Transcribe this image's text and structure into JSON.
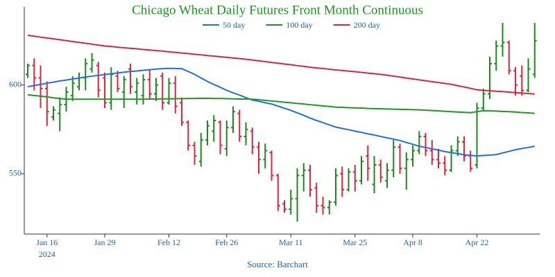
{
  "chart_data": {
    "type": "ohlc",
    "title": "Chicago Wheat Daily Futures Front Month Continuous",
    "source": "Source: Barchart",
    "year": "2024",
    "categories": [
      null,
      null,
      null,
      "Jan 16",
      null,
      null,
      null,
      null,
      null,
      null,
      null,
      null,
      "Jan 29",
      null,
      null,
      null,
      null,
      null,
      null,
      null,
      null,
      null,
      "Feb 12",
      null,
      null,
      null,
      null,
      null,
      null,
      null,
      null,
      "Feb 26",
      null,
      null,
      null,
      null,
      null,
      null,
      null,
      null,
      null,
      "Mar 11",
      null,
      null,
      null,
      null,
      null,
      null,
      null,
      null,
      null,
      "Mar 25",
      null,
      null,
      null,
      null,
      null,
      null,
      null,
      null,
      "Apr 8",
      null,
      null,
      null,
      null,
      null,
      null,
      null,
      null,
      null,
      "Apr 22",
      null,
      null,
      null,
      null,
      null,
      null,
      null,
      null,
      null
    ],
    "open": [
      606,
      611,
      604,
      598,
      582,
      584,
      589,
      594,
      599,
      604,
      609,
      611,
      604,
      590,
      605,
      596,
      609,
      596,
      594,
      603,
      595,
      605,
      590,
      601,
      590,
      579,
      566,
      557,
      569,
      574,
      579,
      564,
      576,
      584,
      571,
      574,
      565,
      558,
      562,
      549,
      533,
      530,
      536,
      549,
      552,
      542,
      532,
      531,
      534,
      550,
      541,
      551,
      546,
      560,
      544,
      555,
      546,
      552,
      565,
      553,
      558,
      563,
      571,
      563,
      558,
      556,
      552,
      563,
      568,
      560,
      555,
      587,
      595,
      612,
      622,
      624,
      608,
      605,
      597,
      606
    ],
    "high": [
      612,
      615,
      611,
      602,
      588,
      593,
      599,
      605,
      607,
      615,
      618,
      613,
      607,
      610,
      608,
      605,
      612,
      604,
      606,
      609,
      604,
      607,
      604,
      605,
      593,
      580,
      568,
      573,
      580,
      583,
      580,
      580,
      588,
      586,
      579,
      576,
      568,
      567,
      563,
      550,
      535,
      541,
      553,
      556,
      555,
      545,
      537,
      535,
      553,
      554,
      553,
      555,
      560,
      566,
      560,
      558,
      556,
      569,
      567,
      562,
      566,
      574,
      573,
      569,
      564,
      560,
      566,
      571,
      571,
      563,
      590,
      598,
      616,
      625,
      635,
      625,
      610,
      611,
      615,
      635
    ],
    "low": [
      604,
      597,
      587,
      577,
      580,
      574,
      585,
      591,
      597,
      597,
      607,
      593,
      587,
      586,
      596,
      587,
      595,
      589,
      589,
      592,
      591,
      586,
      589,
      584,
      577,
      563,
      555,
      554,
      566,
      568,
      561,
      560,
      573,
      568,
      566,
      561,
      550,
      553,
      546,
      529,
      528,
      527,
      523,
      540,
      537,
      528,
      527,
      527,
      532,
      537,
      540,
      540,
      544,
      546,
      539,
      545,
      542,
      548,
      550,
      541,
      554,
      561,
      560,
      555,
      553,
      549,
      551,
      560,
      557,
      551,
      553,
      585,
      592,
      608,
      616,
      606,
      594,
      594,
      596,
      604
    ],
    "close": [
      611,
      604,
      598,
      585,
      586,
      589,
      596,
      601,
      604,
      612,
      614,
      597,
      590,
      606,
      598,
      603,
      599,
      601,
      603,
      595,
      600,
      590,
      601,
      588,
      579,
      566,
      560,
      569,
      577,
      580,
      566,
      576,
      585,
      571,
      575,
      565,
      558,
      563,
      549,
      532,
      530,
      536,
      549,
      552,
      541,
      532,
      531,
      534,
      549,
      541,
      551,
      546,
      557,
      553,
      555,
      548,
      552,
      565,
      553,
      558,
      563,
      571,
      563,
      558,
      556,
      552,
      563,
      568,
      560,
      553,
      587,
      595,
      612,
      622,
      624,
      608,
      600,
      597,
      609,
      625
    ],
    "up_color": "#1a8a1a",
    "down_color": "#e0243c",
    "series": [
      {
        "name": "50 day",
        "color": "#1f6fdc",
        "values": [
          599.0,
          599.7,
          600.3,
          601.0,
          601.6,
          602.3,
          602.8,
          603.4,
          603.9,
          604.5,
          605.0,
          605.4,
          605.9,
          606.3,
          606.8,
          607.2,
          607.6,
          607.9,
          608.3,
          608.6,
          609.0,
          609.2,
          609.4,
          609.3,
          609.2,
          607.6,
          606.0,
          604.0,
          602.0,
          600.3,
          598.7,
          597.0,
          595.6,
          594.3,
          592.9,
          591.5,
          590.8,
          590.0,
          589.3,
          588.1,
          586.9,
          585.7,
          584.3,
          582.9,
          581.4,
          580.0,
          578.8,
          577.5,
          576.3,
          575.5,
          574.8,
          574.0,
          573.3,
          572.5,
          571.8,
          571.0,
          570.2,
          569.5,
          568.7,
          567.6,
          566.6,
          565.5,
          564.8,
          564.0,
          563.3,
          562.5,
          561.9,
          561.3,
          560.7,
          560.4,
          560.0,
          560.3,
          560.5,
          560.8,
          561.7,
          562.6,
          563.5,
          564.2,
          564.8,
          565.5
        ]
      },
      {
        "name": "100 day",
        "color": "#1a9a1a",
        "values": [
          594.5,
          594.1,
          593.7,
          593.3,
          592.8,
          592.4,
          592.0,
          592.0,
          592.0,
          592.0,
          592.0,
          592.0,
          592.0,
          592.0,
          592.0,
          592.0,
          592.0,
          592.0,
          592.0,
          592.1,
          592.1,
          592.2,
          592.2,
          592.3,
          592.3,
          592.4,
          592.4,
          592.5,
          592.5,
          592.4,
          592.4,
          592.3,
          592.2,
          592.1,
          592.1,
          592.0,
          591.7,
          591.3,
          591.0,
          590.7,
          590.3,
          590.0,
          589.6,
          589.3,
          588.9,
          588.6,
          588.2,
          587.9,
          587.5,
          587.4,
          587.2,
          587.1,
          587.0,
          586.8,
          586.7,
          586.6,
          586.5,
          586.4,
          586.3,
          586.2,
          586.1,
          586.0,
          585.8,
          585.6,
          585.4,
          585.2,
          585.0,
          584.8,
          584.6,
          584.4,
          585.0,
          585.5,
          585.4,
          585.3,
          585.1,
          585.0,
          584.8,
          584.5,
          584.3,
          584.0
        ]
      },
      {
        "name": "200 day",
        "color": "#dc2043",
        "values": [
          628.0,
          627.5,
          627.0,
          626.5,
          626.0,
          625.5,
          625.0,
          624.5,
          624.0,
          623.5,
          623.0,
          622.5,
          622.0,
          621.7,
          621.3,
          621.0,
          620.7,
          620.4,
          620.0,
          619.7,
          619.4,
          619.1,
          618.7,
          618.4,
          618.0,
          617.7,
          617.3,
          617.0,
          616.6,
          616.3,
          615.9,
          615.6,
          615.2,
          614.9,
          614.5,
          614.1,
          613.6,
          613.2,
          612.7,
          612.3,
          611.8,
          611.4,
          610.9,
          610.5,
          610.0,
          609.6,
          609.3,
          608.9,
          608.5,
          608.2,
          607.8,
          607.5,
          607.1,
          606.7,
          606.4,
          606.0,
          605.5,
          605.0,
          604.5,
          603.9,
          603.4,
          602.9,
          602.4,
          601.9,
          601.4,
          600.9,
          600.4,
          599.6,
          598.9,
          598.1,
          597.3,
          597.0,
          596.8,
          596.5,
          596.3,
          596.0,
          595.7,
          595.4,
          595.2,
          594.9
        ]
      }
    ],
    "ylim": [
      516,
      644
    ],
    "yticks": [
      550,
      600
    ],
    "legend": "top",
    "title_color": "#1a9a1a",
    "label_color": "#1f5fbf"
  }
}
